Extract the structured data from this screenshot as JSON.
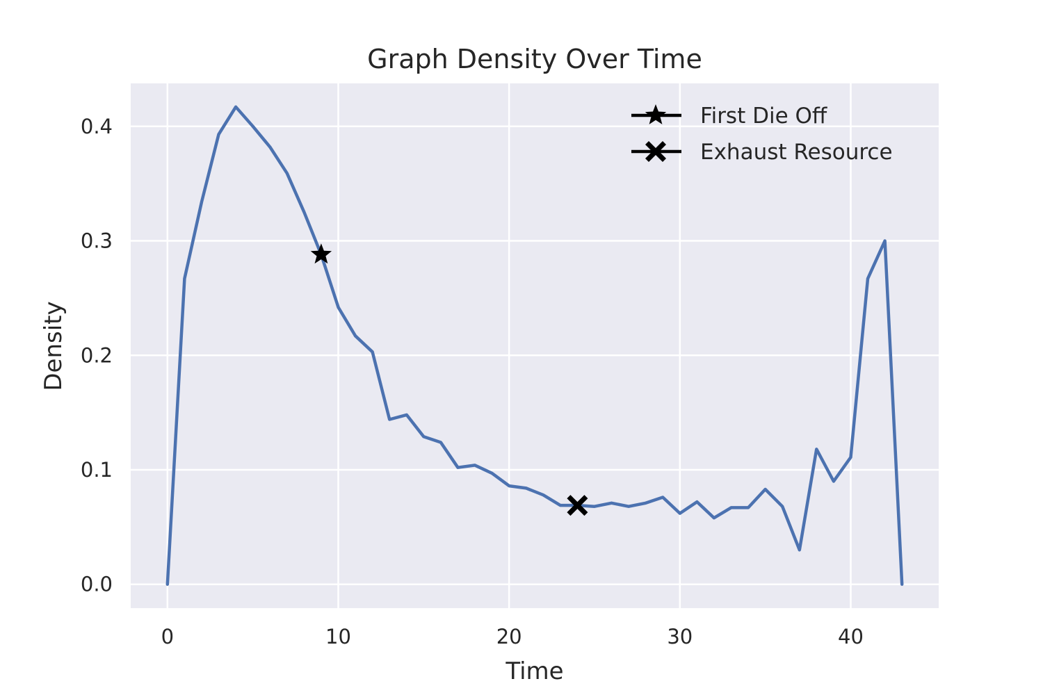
{
  "chart_data": {
    "type": "line",
    "title": "Graph Density Over Time",
    "xlabel": "Time",
    "ylabel": "Density",
    "xlim": [
      -2.15,
      45.15
    ],
    "ylim": [
      -0.0208,
      0.4375
    ],
    "xticks": [
      0,
      10,
      20,
      30,
      40
    ],
    "xtick_labels": [
      "0",
      "10",
      "20",
      "30",
      "40"
    ],
    "yticks": [
      0.0,
      0.1,
      0.2,
      0.3,
      0.4
    ],
    "ytick_labels": [
      "0.0",
      "0.1",
      "0.2",
      "0.3",
      "0.4"
    ],
    "grid": true,
    "legend_position": "top-right",
    "colors": {
      "line": "#4c72b0",
      "background": "#eaeaf2",
      "grid": "#ffffff",
      "marker": "#000000"
    },
    "series": [
      {
        "x": [
          0,
          1,
          2,
          3,
          4,
          5,
          6,
          7,
          8,
          9,
          10,
          11,
          12,
          13,
          14,
          15,
          16,
          17,
          18,
          19,
          20,
          21,
          22,
          23,
          24,
          25,
          26,
          27,
          28,
          29,
          30,
          31,
          32,
          33,
          34,
          35,
          36,
          37,
          38,
          39,
          40,
          41,
          42,
          43
        ],
        "y": [
          0.0,
          0.267,
          0.334,
          0.393,
          0.417,
          0.4,
          0.382,
          0.359,
          0.325,
          0.288,
          0.242,
          0.217,
          0.203,
          0.144,
          0.148,
          0.129,
          0.124,
          0.102,
          0.104,
          0.097,
          0.086,
          0.084,
          0.078,
          0.069,
          0.069,
          0.068,
          0.071,
          0.068,
          0.071,
          0.076,
          0.062,
          0.072,
          0.058,
          0.067,
          0.067,
          0.083,
          0.068,
          0.03,
          0.118,
          0.09,
          0.111,
          0.267,
          0.3,
          0.0
        ]
      }
    ],
    "events": [
      {
        "name": "First Die Off",
        "marker": "star-icon",
        "x": 9,
        "y": 0.288
      },
      {
        "name": "Exhaust Resource",
        "marker": "x-icon",
        "x": 24,
        "y": 0.069
      }
    ]
  }
}
